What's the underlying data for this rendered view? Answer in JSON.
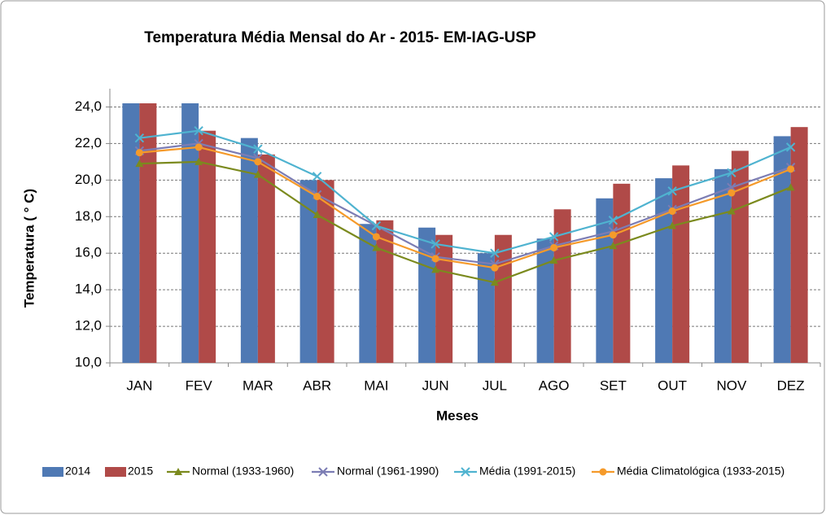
{
  "chart_data": {
    "type": "bar_line",
    "title": "Temperatura Média Mensal do Ar -  2015- EM-IAG-USP",
    "x_label": "Meses",
    "y_label": "Temperatura ( ° C)",
    "categories": [
      "JAN",
      "FEV",
      "MAR",
      "ABR",
      "MAI",
      "JUN",
      "JUL",
      "AGO",
      "SET",
      "OUT",
      "NOV",
      "DEZ"
    ],
    "ylim": [
      10,
      25
    ],
    "yticks": [
      {
        "value": 10,
        "label": "10,0"
      },
      {
        "value": 12,
        "label": "12,0"
      },
      {
        "value": 14,
        "label": "14,0"
      },
      {
        "value": 16,
        "label": "16,0"
      },
      {
        "value": 18,
        "label": "18,0"
      },
      {
        "value": 20,
        "label": "20,0"
      },
      {
        "value": 22,
        "label": "22,0"
      },
      {
        "value": 24,
        "label": "24,0"
      }
    ],
    "grid": true,
    "legend": "bottom",
    "series": [
      {
        "name": "2014",
        "kind": "bar",
        "color": "#4f79b4",
        "values": [
          24.2,
          24.2,
          22.3,
          20.0,
          17.6,
          17.4,
          16.0,
          16.8,
          19.0,
          20.1,
          20.6,
          22.4
        ]
      },
      {
        "name": "2015",
        "kind": "bar",
        "color": "#b04a48",
        "values": [
          24.2,
          22.7,
          21.4,
          20.0,
          17.8,
          17.0,
          17.0,
          18.4,
          19.8,
          20.8,
          21.6,
          22.9
        ]
      },
      {
        "name": "Normal (1933-1960)",
        "kind": "line",
        "marker": "triangle",
        "color": "#7b8a1e",
        "values": [
          20.9,
          21.0,
          20.3,
          18.1,
          16.3,
          15.1,
          14.4,
          15.6,
          16.4,
          17.5,
          18.3,
          19.6
        ]
      },
      {
        "name": "Normal (1961-1990)",
        "kind": "line",
        "marker": "x",
        "color": "#7c7db4",
        "values": [
          21.6,
          22.0,
          21.2,
          19.2,
          17.5,
          15.8,
          15.4,
          16.4,
          17.2,
          18.4,
          19.6,
          20.7
        ]
      },
      {
        "name": "Média (1991-2015)",
        "kind": "line",
        "marker": "x",
        "color": "#4fb3d0",
        "values": [
          22.3,
          22.7,
          21.7,
          20.2,
          17.5,
          16.5,
          16.0,
          16.9,
          17.8,
          19.4,
          20.4,
          21.8
        ]
      },
      {
        "name": "Média Climatológica (1933-2015)",
        "kind": "line",
        "marker": "circle",
        "color": "#f59a2a",
        "values": [
          21.5,
          21.8,
          21.0,
          19.1,
          16.9,
          15.7,
          15.2,
          16.3,
          17.0,
          18.3,
          19.3,
          20.6
        ]
      }
    ]
  }
}
